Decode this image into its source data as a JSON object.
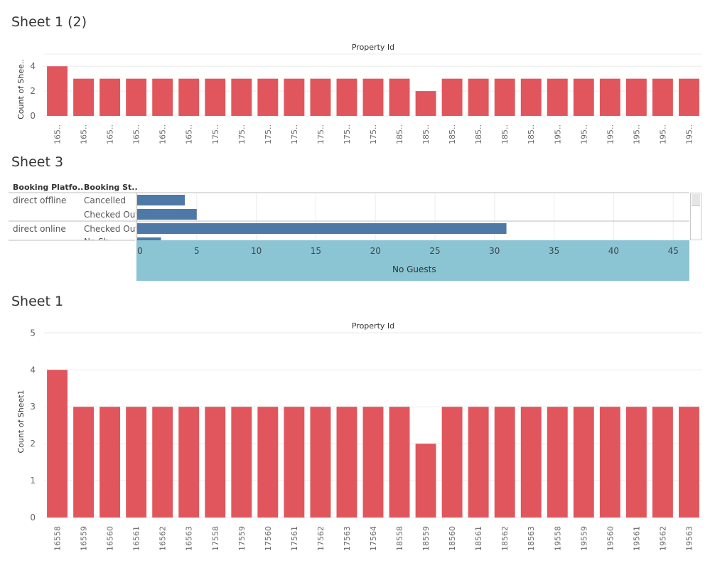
{
  "sheets": {
    "top_title": "Sheet 1 (2)",
    "mid_title": "Sheet 3",
    "bottom_title": "Sheet 1"
  },
  "colors": {
    "red": "#e0565c",
    "blue": "#4e79a7",
    "band": "#8bc4d3"
  },
  "chart_data": [
    {
      "type": "bar",
      "title": "Property Id",
      "ylabel": "Count of Shee..",
      "ylim": [
        0,
        4.3
      ],
      "yticks": [
        0,
        2,
        4
      ],
      "categories": [
        "165..",
        "165..",
        "165..",
        "165..",
        "165..",
        "165..",
        "175..",
        "175..",
        "175..",
        "175..",
        "175..",
        "175..",
        "175..",
        "185..",
        "185..",
        "185..",
        "185..",
        "185..",
        "185..",
        "195..",
        "195..",
        "195..",
        "195..",
        "195..",
        "195.."
      ],
      "values": [
        4,
        3,
        3,
        3,
        3,
        3,
        3,
        3,
        3,
        3,
        3,
        3,
        3,
        3,
        2,
        3,
        3,
        3,
        3,
        3,
        3,
        3,
        3,
        3,
        3
      ]
    },
    {
      "type": "bar",
      "orientation": "horizontal",
      "headers": [
        "Booking Platfo..",
        "Booking St.."
      ],
      "rows": [
        {
          "platform": "direct offline",
          "status": "Cancelled",
          "value": 4
        },
        {
          "platform": "",
          "status": "Checked Out",
          "value": 5
        },
        {
          "platform": "direct online",
          "status": "Checked Out",
          "value": 31
        },
        {
          "platform": "",
          "status": "No Sh..",
          "value": 2
        }
      ],
      "xlabel": "No Guests",
      "xlim": [
        0,
        46
      ],
      "xticks": [
        0,
        5,
        10,
        15,
        20,
        25,
        30,
        35,
        40,
        45
      ]
    },
    {
      "type": "bar",
      "title": "Property Id",
      "ylabel": "Count of Sheet1",
      "ylim": [
        0,
        5.2
      ],
      "yticks": [
        0,
        1,
        2,
        3,
        4,
        5
      ],
      "categories": [
        "16558",
        "16559",
        "16560",
        "16561",
        "16562",
        "16563",
        "17558",
        "17559",
        "17560",
        "17561",
        "17562",
        "17563",
        "17564",
        "18558",
        "18559",
        "18560",
        "18561",
        "18562",
        "18563",
        "19558",
        "19559",
        "19560",
        "19561",
        "19562",
        "19563"
      ],
      "values": [
        4,
        3,
        3,
        3,
        3,
        3,
        3,
        3,
        3,
        3,
        3,
        3,
        3,
        3,
        2,
        3,
        3,
        3,
        3,
        3,
        3,
        3,
        3,
        3,
        3
      ]
    }
  ]
}
